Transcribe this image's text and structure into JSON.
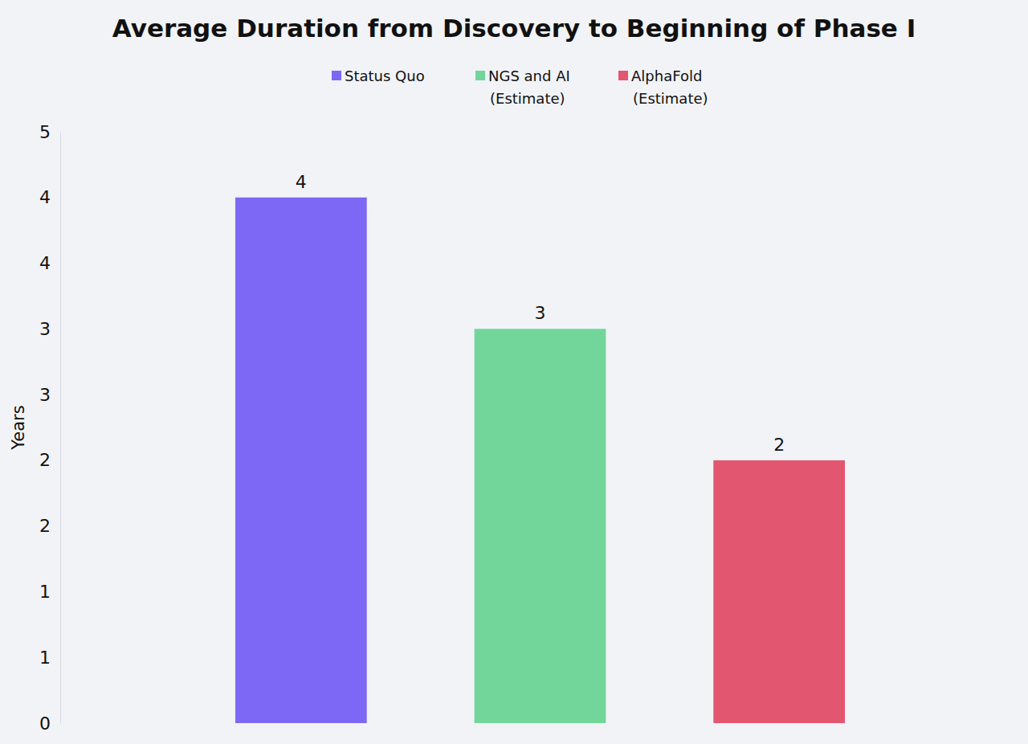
{
  "chart_data": {
    "type": "bar",
    "title": "Average Duration from Discovery to Beginning of Phase I",
    "y_label": "Years",
    "categories": [
      null,
      null,
      null
    ],
    "series": [
      {
        "name": "Status Quo",
        "color": "#7c68f4",
        "values": [
          4,
          null,
          null
        ]
      },
      {
        "name": "NGS and AI (Estimate)",
        "color": "#72d69b",
        "values": [
          null,
          3,
          null
        ]
      },
      {
        "name": "AlphaFold (Estimate)",
        "color": "#e35670",
        "values": [
          null,
          null,
          2
        ]
      }
    ],
    "ylim": [
      0,
      4.5
    ],
    "yticks": [
      0,
      {
        "value": 0.5,
        "label": "1"
      },
      1,
      {
        "value": 1.5,
        "label": "2"
      },
      2,
      {
        "value": 2.5,
        "label": "3"
      },
      3,
      {
        "value": 3.5,
        "label": "4"
      },
      4,
      {
        "value": 4.5,
        "label": "5"
      }
    ],
    "grid": false,
    "legend": "top",
    "data_labels": true
  }
}
